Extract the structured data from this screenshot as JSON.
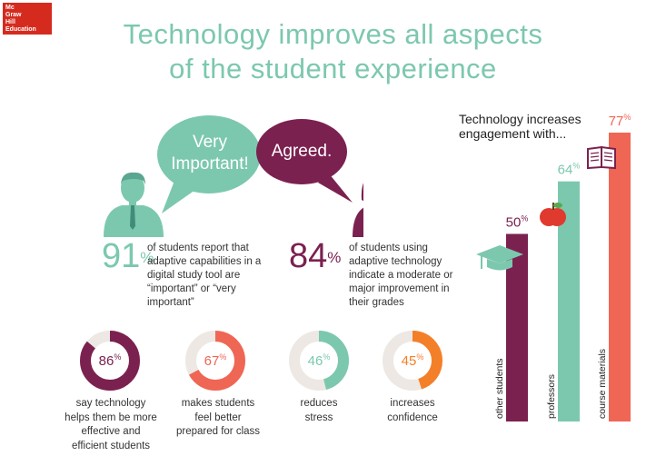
{
  "logo": {
    "lines": [
      "Mc",
      "Graw",
      "Hill",
      "Education"
    ]
  },
  "title": {
    "line1": "Technology improves all aspects",
    "line2": "of the student experience"
  },
  "bubbles": {
    "left": {
      "line1": "Very",
      "line2": "Important!"
    },
    "right": "Agreed."
  },
  "stats": {
    "left": {
      "value": "91",
      "unit": "%",
      "desc": [
        "of students report that",
        "adaptive capabilities in a",
        "digital study tool are",
        "“important” or “very",
        "important”"
      ]
    },
    "right": {
      "value": "84",
      "unit": "%",
      "desc": [
        "of students using",
        "adaptive technology",
        "indicate a moderate or",
        "major improvement in",
        "their grades"
      ]
    }
  },
  "rings": [
    {
      "value": "86",
      "unit": "%",
      "fraction": 0.86,
      "color": "#7b2150",
      "caption": [
        "say technology",
        "helps them be more",
        "effective and",
        "efficient students"
      ]
    },
    {
      "value": "67",
      "unit": "%",
      "fraction": 0.67,
      "color": "#ef6655",
      "caption": [
        "makes students",
        "feel better",
        "prepared for class"
      ]
    },
    {
      "value": "46",
      "unit": "%",
      "fraction": 0.46,
      "color": "#7cc8ae",
      "caption": [
        "reduces",
        "stress"
      ]
    },
    {
      "value": "45",
      "unit": "%",
      "fraction": 0.45,
      "color": "#f47f29",
      "caption": [
        "increases",
        "confidence"
      ]
    }
  ],
  "engagement": {
    "heading": [
      "Technology increases",
      "engagement with..."
    ]
  },
  "chart_data": {
    "type": "bar",
    "categories": [
      "other students",
      "professors",
      "course materials"
    ],
    "values": [
      50,
      64,
      77
    ],
    "unit": "%",
    "colors": [
      "#7b2150",
      "#7cc8ae",
      "#ef6655"
    ],
    "ylim": [
      0,
      77
    ]
  }
}
